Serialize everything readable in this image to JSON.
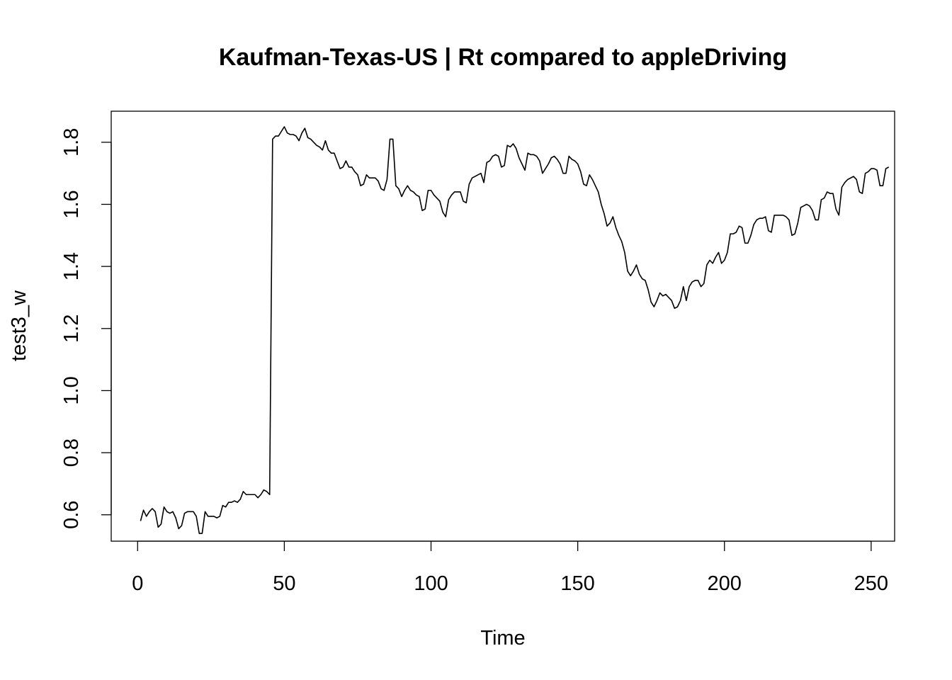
{
  "chart_data": {
    "type": "line",
    "title": "Kaufman-Texas-US | Rt compared to appleDriving",
    "xlabel": "Time",
    "ylabel": "test3_w",
    "xlim": [
      -9,
      258
    ],
    "ylim": [
      0.515,
      1.9
    ],
    "xticks": [
      0,
      50,
      100,
      150,
      200,
      250
    ],
    "yticks": [
      0.6,
      0.8,
      1.0,
      1.2,
      1.4,
      1.6,
      1.8
    ],
    "xtick_labels": [
      "0",
      "50",
      "100",
      "150",
      "200",
      "250"
    ],
    "ytick_labels": [
      "0.6",
      "0.8",
      "1.0",
      "1.2",
      "1.4",
      "1.6",
      "1.8"
    ],
    "grid": false,
    "series": [
      {
        "color": "#000000",
        "x_start": 1,
        "values": [
          0.58,
          0.615,
          0.595,
          0.61,
          0.62,
          0.61,
          0.56,
          0.57,
          0.625,
          0.61,
          0.605,
          0.61,
          0.59,
          0.555,
          0.565,
          0.605,
          0.61,
          0.61,
          0.61,
          0.595,
          0.54,
          0.54,
          0.61,
          0.595,
          0.595,
          0.595,
          0.59,
          0.595,
          0.63,
          0.625,
          0.64,
          0.64,
          0.645,
          0.64,
          0.65,
          0.675,
          0.665,
          0.665,
          0.665,
          0.665,
          0.655,
          0.665,
          0.68,
          0.675,
          0.665,
          1.81,
          1.82,
          1.82,
          1.835,
          1.85,
          1.83,
          1.825,
          1.825,
          1.82,
          1.805,
          1.83,
          1.845,
          1.815,
          1.81,
          1.8,
          1.79,
          1.785,
          1.775,
          1.805,
          1.775,
          1.765,
          1.765,
          1.74,
          1.715,
          1.72,
          1.74,
          1.72,
          1.72,
          1.705,
          1.695,
          1.66,
          1.665,
          1.695,
          1.685,
          1.685,
          1.685,
          1.675,
          1.65,
          1.645,
          1.68,
          1.81,
          1.81,
          1.66,
          1.65,
          1.625,
          1.645,
          1.66,
          1.645,
          1.64,
          1.63,
          1.625,
          1.58,
          1.585,
          1.645,
          1.645,
          1.63,
          1.62,
          1.61,
          1.575,
          1.56,
          1.615,
          1.63,
          1.64,
          1.64,
          1.64,
          1.61,
          1.605,
          1.665,
          1.685,
          1.69,
          1.695,
          1.7,
          1.67,
          1.735,
          1.74,
          1.755,
          1.76,
          1.755,
          1.72,
          1.725,
          1.79,
          1.785,
          1.795,
          1.78,
          1.75,
          1.73,
          1.71,
          1.765,
          1.76,
          1.76,
          1.755,
          1.74,
          1.7,
          1.715,
          1.73,
          1.75,
          1.755,
          1.745,
          1.73,
          1.7,
          1.7,
          1.755,
          1.745,
          1.74,
          1.73,
          1.705,
          1.665,
          1.66,
          1.695,
          1.68,
          1.66,
          1.64,
          1.6,
          1.57,
          1.53,
          1.54,
          1.56,
          1.525,
          1.5,
          1.48,
          1.445,
          1.385,
          1.37,
          1.385,
          1.405,
          1.375,
          1.36,
          1.355,
          1.325,
          1.285,
          1.27,
          1.29,
          1.315,
          1.305,
          1.31,
          1.3,
          1.29,
          1.265,
          1.27,
          1.29,
          1.335,
          1.29,
          1.335,
          1.35,
          1.355,
          1.355,
          1.335,
          1.345,
          1.405,
          1.42,
          1.41,
          1.43,
          1.445,
          1.41,
          1.42,
          1.445,
          1.505,
          1.505,
          1.51,
          1.53,
          1.525,
          1.475,
          1.475,
          1.5,
          1.535,
          1.55,
          1.555,
          1.555,
          1.56,
          1.515,
          1.51,
          1.565,
          1.565,
          1.565,
          1.565,
          1.56,
          1.55,
          1.5,
          1.505,
          1.54,
          1.59,
          1.595,
          1.6,
          1.595,
          1.58,
          1.55,
          1.55,
          1.615,
          1.62,
          1.64,
          1.635,
          1.635,
          1.585,
          1.565,
          1.655,
          1.67,
          1.68,
          1.685,
          1.69,
          1.68,
          1.64,
          1.635,
          1.7,
          1.705,
          1.715,
          1.715,
          1.71,
          1.66,
          1.66,
          1.715,
          1.72
        ]
      }
    ]
  }
}
